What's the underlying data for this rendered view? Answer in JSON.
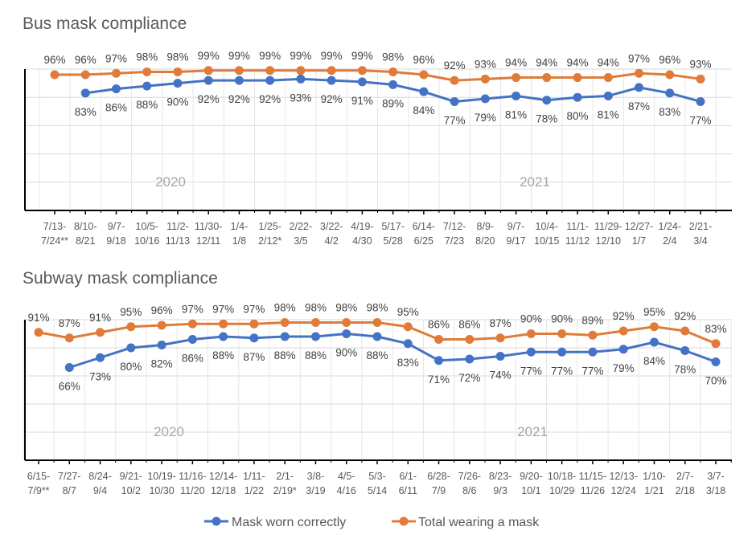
{
  "chart_data": [
    {
      "type": "line",
      "title": "Bus mask compliance",
      "ylim": [
        0,
        100
      ],
      "grid": true,
      "annotations": [
        "2020",
        "2021"
      ],
      "categories": [
        [
          "7/13-",
          "7/24**"
        ],
        [
          "8/10-",
          "8/21"
        ],
        [
          "9/7-",
          "9/18"
        ],
        [
          "10/5-",
          "10/16"
        ],
        [
          "11/2-",
          "11/13"
        ],
        [
          "11/30-",
          "12/11"
        ],
        [
          "1/4-",
          "1/8"
        ],
        [
          "1/25-",
          "2/12*"
        ],
        [
          "2/22-",
          "3/5"
        ],
        [
          "3/22-",
          "4/2"
        ],
        [
          "4/19-",
          "4/30"
        ],
        [
          "5/17-",
          "5/28"
        ],
        [
          "6/14-",
          "6/25"
        ],
        [
          "7/12-",
          "7/23"
        ],
        [
          "8/9-",
          "8/20"
        ],
        [
          "9/7-",
          "9/17"
        ],
        [
          "10/4-",
          "10/15"
        ],
        [
          "11/1-",
          "11/12"
        ],
        [
          "11/29-",
          "12/10"
        ],
        [
          "12/27-",
          "1/7"
        ],
        [
          "1/24-",
          "2/4"
        ],
        [
          "2/21-",
          "3/4"
        ]
      ],
      "series": [
        {
          "name": "Mask worn correctly",
          "color": "#4472C4",
          "values": [
            null,
            83,
            86,
            88,
            90,
            92,
            92,
            92,
            93,
            92,
            91,
            89,
            84,
            77,
            79,
            81,
            78,
            80,
            81,
            87,
            83,
            77
          ]
        },
        {
          "name": "Total wearing a mask",
          "color": "#E07B39",
          "values": [
            96,
            96,
            97,
            98,
            98,
            99,
            99,
            99,
            99,
            99,
            99,
            98,
            96,
            92,
            93,
            94,
            94,
            94,
            94,
            97,
            96,
            93
          ]
        }
      ]
    },
    {
      "type": "line",
      "title": "Subway mask compliance",
      "ylim": [
        0,
        100
      ],
      "grid": true,
      "annotations": [
        "2020",
        "2021"
      ],
      "categories": [
        [
          "6/15-",
          "7/9**"
        ],
        [
          "7/27-",
          "8/7"
        ],
        [
          "8/24-",
          "9/4"
        ],
        [
          "9/21-",
          "10/2"
        ],
        [
          "10/19-",
          "10/30"
        ],
        [
          "11/16-",
          "11/20"
        ],
        [
          "12/14-",
          "12/18"
        ],
        [
          "1/11-",
          "1/22"
        ],
        [
          "2/1-",
          "2/19*"
        ],
        [
          "3/8-",
          "3/19"
        ],
        [
          "4/5-",
          "4/16"
        ],
        [
          "5/3-",
          "5/14"
        ],
        [
          "6/1-",
          "6/11"
        ],
        [
          "6/28-",
          "7/9"
        ],
        [
          "7/26-",
          "8/6"
        ],
        [
          "8/23-",
          "9/3"
        ],
        [
          "9/20-",
          "10/1"
        ],
        [
          "10/18-",
          "10/29"
        ],
        [
          "11/15-",
          "11/26"
        ],
        [
          "12/13-",
          "12/24"
        ],
        [
          "1/10-",
          "1/21"
        ],
        [
          "2/7-",
          "2/18"
        ],
        [
          "3/7-",
          "3/18"
        ]
      ],
      "series": [
        {
          "name": "Mask worn correctly",
          "color": "#4472C4",
          "values": [
            null,
            66,
            73,
            80,
            82,
            86,
            88,
            87,
            88,
            88,
            90,
            88,
            83,
            71,
            72,
            74,
            77,
            77,
            77,
            79,
            84,
            78,
            70
          ]
        },
        {
          "name": "Total wearing a mask",
          "color": "#E07B39",
          "values": [
            91,
            87,
            91,
            95,
            96,
            97,
            97,
            97,
            98,
            98,
            98,
            98,
            95,
            86,
            86,
            87,
            90,
            90,
            89,
            92,
            95,
            92,
            83
          ]
        }
      ]
    }
  ],
  "legend": {
    "position": "bottom",
    "items": [
      {
        "label": "Mask worn correctly",
        "color": "#4472C4"
      },
      {
        "label": "Total wearing a mask",
        "color": "#E07B39"
      }
    ]
  }
}
